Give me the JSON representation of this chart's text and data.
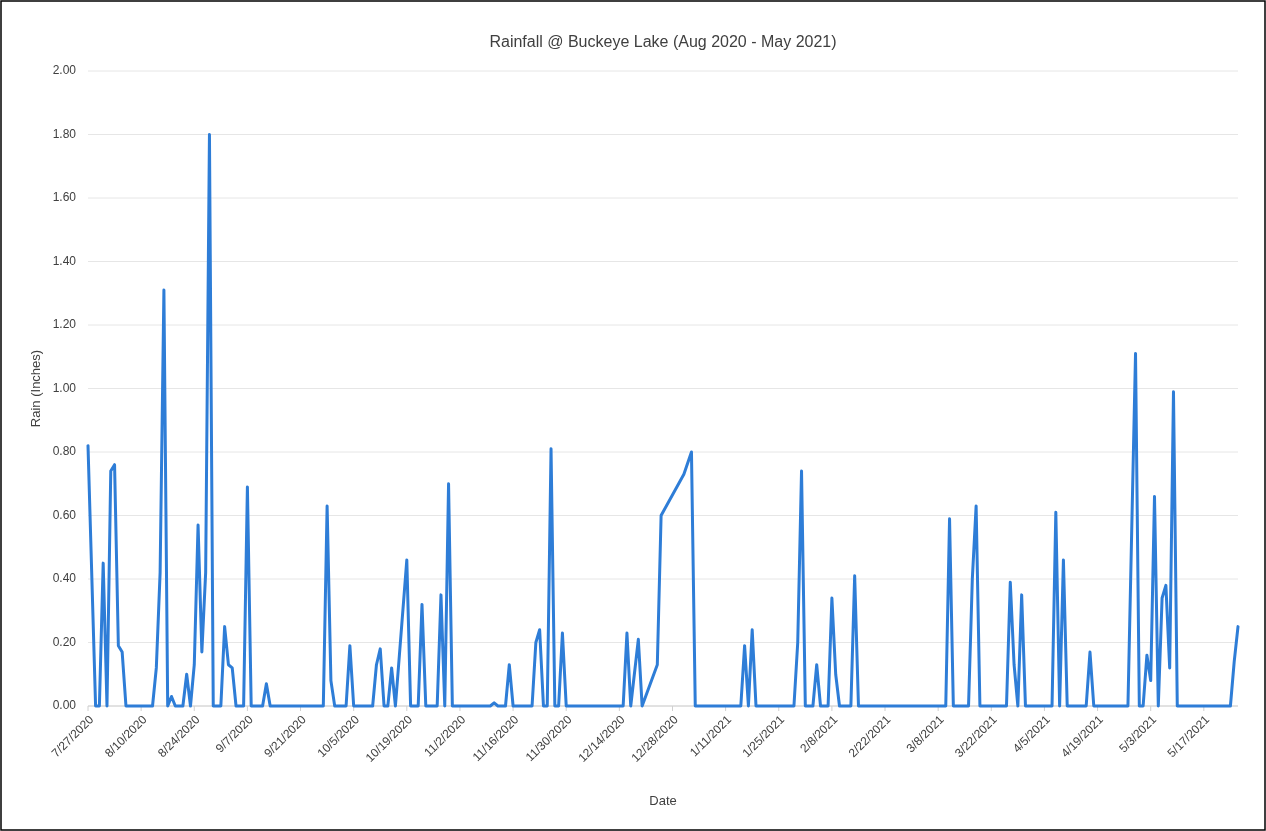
{
  "chart_data": {
    "type": "line",
    "title": "Rainfall @ Buckeye Lake (Aug 2020 - May 2021)",
    "xlabel": "Date",
    "ylabel": "Rain (Inches)",
    "x": [
      "2020-07-27",
      "2020-07-29",
      "2020-07-30",
      "2020-07-31",
      "2020-08-01",
      "2020-08-02",
      "2020-08-03",
      "2020-08-04",
      "2020-08-05",
      "2020-08-06",
      "2020-08-13",
      "2020-08-14",
      "2020-08-15",
      "2020-08-16",
      "2020-08-17",
      "2020-08-18",
      "2020-08-19",
      "2020-08-21",
      "2020-08-22",
      "2020-08-23",
      "2020-08-24",
      "2020-08-25",
      "2020-08-26",
      "2020-08-27",
      "2020-08-28",
      "2020-08-29",
      "2020-08-31",
      "2020-09-01",
      "2020-09-02",
      "2020-09-03",
      "2020-09-04",
      "2020-09-06",
      "2020-09-07",
      "2020-09-08",
      "2020-09-11",
      "2020-09-12",
      "2020-09-13",
      "2020-09-27",
      "2020-09-28",
      "2020-09-29",
      "2020-09-30",
      "2020-10-03",
      "2020-10-04",
      "2020-10-05",
      "2020-10-10",
      "2020-10-11",
      "2020-10-12",
      "2020-10-13",
      "2020-10-14",
      "2020-10-15",
      "2020-10-16",
      "2020-10-19",
      "2020-10-20",
      "2020-10-22",
      "2020-10-23",
      "2020-10-24",
      "2020-10-27",
      "2020-10-28",
      "2020-10-29",
      "2020-10-30",
      "2020-10-31",
      "2020-11-10",
      "2020-11-11",
      "2020-11-12",
      "2020-11-14",
      "2020-11-15",
      "2020-11-16",
      "2020-11-21",
      "2020-11-22",
      "2020-11-23",
      "2020-11-24",
      "2020-11-25",
      "2020-11-26",
      "2020-11-27",
      "2020-11-28",
      "2020-11-29",
      "2020-11-30",
      "2020-12-15",
      "2020-12-16",
      "2020-12-17",
      "2020-12-19",
      "2020-12-20",
      "2020-12-24",
      "2020-12-25",
      "2020-12-31",
      "2021-01-02",
      "2021-01-03",
      "2021-01-15",
      "2021-01-16",
      "2021-01-17",
      "2021-01-18",
      "2021-01-19",
      "2021-01-29",
      "2021-01-30",
      "2021-01-31",
      "2021-02-01",
      "2021-02-03",
      "2021-02-04",
      "2021-02-05",
      "2021-02-07",
      "2021-02-08",
      "2021-02-09",
      "2021-02-10",
      "2021-02-13",
      "2021-02-14",
      "2021-02-15",
      "2021-03-10",
      "2021-03-11",
      "2021-03-12",
      "2021-03-16",
      "2021-03-17",
      "2021-03-18",
      "2021-03-19",
      "2021-03-26",
      "2021-03-27",
      "2021-03-28",
      "2021-03-29",
      "2021-03-30",
      "2021-03-31",
      "2021-04-07",
      "2021-04-08",
      "2021-04-09",
      "2021-04-10",
      "2021-04-11",
      "2021-04-16",
      "2021-04-17",
      "2021-04-18",
      "2021-04-27",
      "2021-04-29",
      "2021-04-30",
      "2021-05-01",
      "2021-05-02",
      "2021-05-03",
      "2021-05-04",
      "2021-05-05",
      "2021-05-06",
      "2021-05-07",
      "2021-05-08",
      "2021-05-09",
      "2021-05-10",
      "2021-05-24",
      "2021-05-25",
      "2021-05-26"
    ],
    "values": [
      0.82,
      0,
      0,
      0.45,
      0,
      0.74,
      0.76,
      0.19,
      0.17,
      0,
      0,
      0.12,
      0.42,
      1.31,
      0,
      0.03,
      0,
      0,
      0.1,
      0,
      0.13,
      0.57,
      0.17,
      0.42,
      1.8,
      0,
      0,
      0.25,
      0.13,
      0.12,
      0,
      0,
      0.69,
      0,
      0,
      0.07,
      0,
      0,
      0.63,
      0.08,
      0,
      0,
      0.19,
      0,
      0,
      0.13,
      0.18,
      0,
      0,
      0.12,
      0,
      0.46,
      0,
      0,
      0.32,
      0,
      0,
      0.35,
      0,
      0.7,
      0,
      0,
      0.01,
      0,
      0,
      0.13,
      0,
      0,
      0.2,
      0.24,
      0,
      0,
      0.81,
      0,
      0,
      0.23,
      0,
      0,
      0.23,
      0,
      0.21,
      0,
      0.13,
      0.6,
      0.73,
      0.8,
      0,
      0,
      0.19,
      0,
      0.24,
      0,
      0,
      0.2,
      0.74,
      0,
      0,
      0.13,
      0,
      0,
      0.34,
      0.1,
      0,
      0,
      0.41,
      0,
      0,
      0.59,
      0,
      0,
      0.4,
      0.63,
      0,
      0,
      0.39,
      0.13,
      0,
      0.35,
      0,
      0,
      0.61,
      0,
      0.46,
      0,
      0,
      0.17,
      0,
      0,
      1.11,
      0,
      0,
      0.16,
      0.08,
      0.66,
      0,
      0.34,
      0.38,
      0.12,
      0.99,
      0,
      0,
      0.14,
      0.25
    ],
    "color": "#2e7dd7",
    "line_style": "solid",
    "marker": "none",
    "grid": "y",
    "xlim": [
      "2020-07-27",
      "2021-05-26"
    ],
    "xticks": [
      {
        "value": "2020-07-27",
        "label": "7/27/2020"
      },
      {
        "value": "2020-08-10",
        "label": "8/10/2020"
      },
      {
        "value": "2020-08-24",
        "label": "8/24/2020"
      },
      {
        "value": "2020-09-07",
        "label": "9/7/2020"
      },
      {
        "value": "2020-09-21",
        "label": "9/21/2020"
      },
      {
        "value": "2020-10-05",
        "label": "10/5/2020"
      },
      {
        "value": "2020-10-19",
        "label": "10/19/2020"
      },
      {
        "value": "2020-11-02",
        "label": "11/2/2020"
      },
      {
        "value": "2020-11-16",
        "label": "11/16/2020"
      },
      {
        "value": "2020-11-30",
        "label": "11/30/2020"
      },
      {
        "value": "2020-12-14",
        "label": "12/14/2020"
      },
      {
        "value": "2020-12-28",
        "label": "12/28/2020"
      },
      {
        "value": "2021-01-11",
        "label": "1/11/2021"
      },
      {
        "value": "2021-01-25",
        "label": "1/25/2021"
      },
      {
        "value": "2021-02-08",
        "label": "2/8/2021"
      },
      {
        "value": "2021-02-22",
        "label": "2/22/2021"
      },
      {
        "value": "2021-03-08",
        "label": "3/8/2021"
      },
      {
        "value": "2021-03-22",
        "label": "3/22/2021"
      },
      {
        "value": "2021-04-05",
        "label": "4/5/2021"
      },
      {
        "value": "2021-04-19",
        "label": "4/19/2021"
      },
      {
        "value": "2021-05-03",
        "label": "5/3/2021"
      },
      {
        "value": "2021-05-17",
        "label": "5/17/2021"
      }
    ],
    "ylim": [
      0,
      2
    ],
    "yticks": [
      {
        "value": 0,
        "label": "0.00"
      },
      {
        "value": 0.2,
        "label": "0.20"
      },
      {
        "value": 0.4,
        "label": "0.40"
      },
      {
        "value": 0.6,
        "label": "0.60"
      },
      {
        "value": 0.8,
        "label": "0.80"
      },
      {
        "value": 1,
        "label": "1.00"
      },
      {
        "value": 1.2,
        "label": "1.20"
      },
      {
        "value": 1.4,
        "label": "1.40"
      },
      {
        "value": 1.6,
        "label": "1.60"
      },
      {
        "value": 1.8,
        "label": "1.80"
      },
      {
        "value": 2,
        "label": "2.00"
      }
    ]
  }
}
